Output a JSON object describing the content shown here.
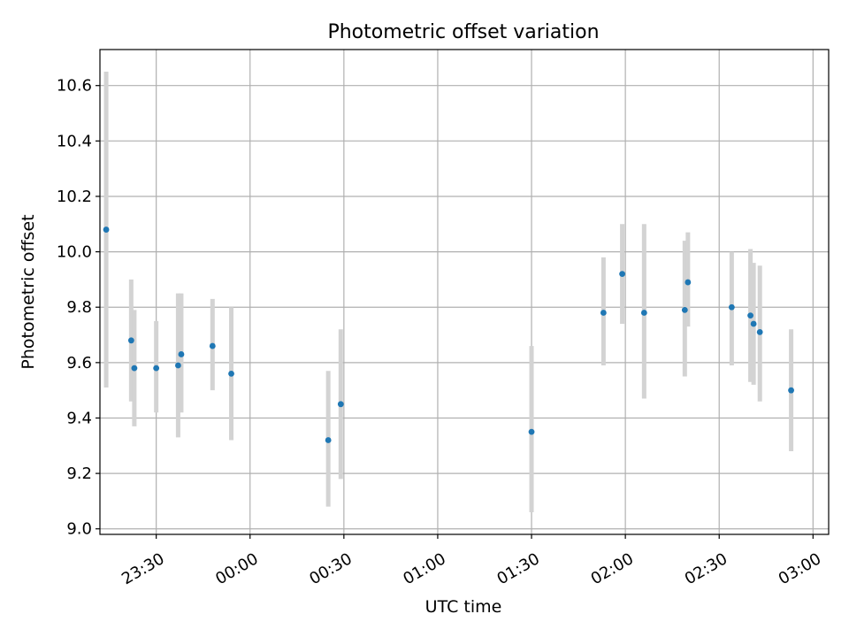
{
  "chart_data": {
    "type": "scatter",
    "title": "Photometric offset variation",
    "xlabel": "UTC time",
    "ylabel": "Photometric offset",
    "xlim": [
      "23:12",
      "03:05"
    ],
    "ylim": [
      8.98,
      10.73
    ],
    "grid": true,
    "x_ticks": [
      "23:30",
      "00:00",
      "00:30",
      "01:00",
      "01:30",
      "02:00",
      "02:30",
      "03:00"
    ],
    "y_ticks": [
      "9.0",
      "9.2",
      "9.4",
      "9.6",
      "9.8",
      "10.0",
      "10.2",
      "10.4",
      "10.6"
    ],
    "colors": {
      "marker": "#1f77b4",
      "errorbar": "#d3d3d3",
      "grid": "#b0b0b0"
    },
    "series": [
      {
        "points": [
          {
            "x": "23:14",
            "y": 10.08,
            "ylow": 9.51,
            "yhigh": 10.65
          },
          {
            "x": "23:22",
            "y": 9.68,
            "ylow": 9.46,
            "yhigh": 9.9
          },
          {
            "x": "23:23",
            "y": 9.58,
            "ylow": 9.37,
            "yhigh": 9.79
          },
          {
            "x": "23:30",
            "y": 9.58,
            "ylow": 9.42,
            "yhigh": 9.75
          },
          {
            "x": "23:37",
            "y": 9.59,
            "ylow": 9.33,
            "yhigh": 9.85
          },
          {
            "x": "23:38",
            "y": 9.63,
            "ylow": 9.42,
            "yhigh": 9.85
          },
          {
            "x": "23:48",
            "y": 9.66,
            "ylow": 9.5,
            "yhigh": 9.83
          },
          {
            "x": "23:54",
            "y": 9.56,
            "ylow": 9.32,
            "yhigh": 9.8
          },
          {
            "x": "00:25",
            "y": 9.32,
            "ylow": 9.08,
            "yhigh": 9.57
          },
          {
            "x": "00:29",
            "y": 9.45,
            "ylow": 9.18,
            "yhigh": 9.72
          },
          {
            "x": "01:30",
            "y": 9.35,
            "ylow": 9.06,
            "yhigh": 9.66
          },
          {
            "x": "01:53",
            "y": 9.78,
            "ylow": 9.59,
            "yhigh": 9.98
          },
          {
            "x": "01:59",
            "y": 9.92,
            "ylow": 9.74,
            "yhigh": 10.1
          },
          {
            "x": "02:06",
            "y": 9.78,
            "ylow": 9.47,
            "yhigh": 10.1
          },
          {
            "x": "02:19",
            "y": 9.79,
            "ylow": 9.55,
            "yhigh": 10.04
          },
          {
            "x": "02:20",
            "y": 9.89,
            "ylow": 9.73,
            "yhigh": 10.07
          },
          {
            "x": "02:34",
            "y": 9.8,
            "ylow": 9.59,
            "yhigh": 10.0
          },
          {
            "x": "02:40",
            "y": 9.77,
            "ylow": 9.53,
            "yhigh": 10.01
          },
          {
            "x": "02:41",
            "y": 9.74,
            "ylow": 9.52,
            "yhigh": 9.96
          },
          {
            "x": "02:43",
            "y": 9.71,
            "ylow": 9.46,
            "yhigh": 9.95
          },
          {
            "x": "02:53",
            "y": 9.5,
            "ylow": 9.28,
            "yhigh": 9.72
          }
        ]
      }
    ]
  }
}
